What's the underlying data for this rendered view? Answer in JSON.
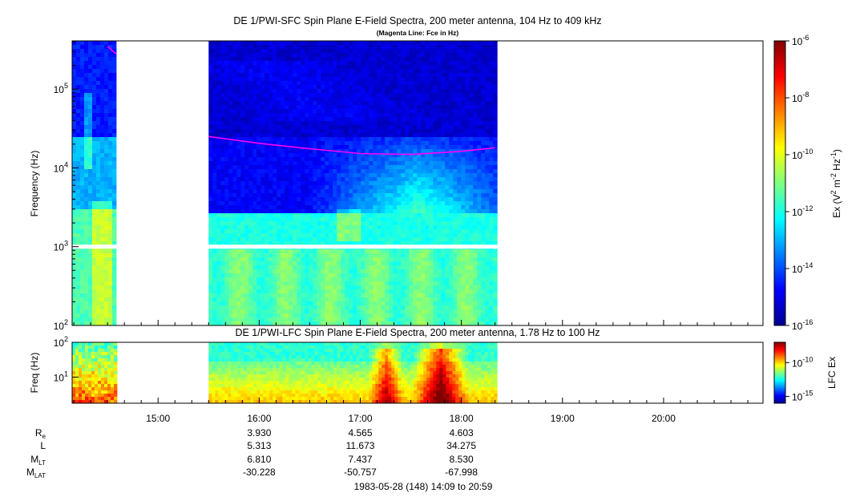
{
  "chart_data": [
    {
      "type": "heatmap",
      "title": "DE 1/PWI-SFC  Spin Plane E-Field Spectra, 200 meter antenna, 104 Hz to 409 kHz",
      "subtitle": "(Magenta Line: Fce in Hz)",
      "ylabel": "Frequency (Hz)",
      "yscale": "log",
      "ylim": [
        100,
        409000
      ],
      "yticks": [
        {
          "value": 100,
          "base": "10",
          "exp": "2"
        },
        {
          "value": 1000,
          "base": "10",
          "exp": "3"
        },
        {
          "value": 10000,
          "base": "10",
          "exp": "4"
        },
        {
          "value": 100000,
          "base": "10",
          "exp": "5"
        }
      ],
      "colorbar": {
        "label_parts": [
          "Ex (V",
          "2",
          " m",
          "-2",
          " Hz",
          "-1",
          ")"
        ],
        "scale": "log",
        "range": [
          1e-16,
          1e-06
        ],
        "ticks": [
          {
            "value": 1e-06,
            "base": "10",
            "exp": "-6"
          },
          {
            "value": 1e-08,
            "base": "10",
            "exp": "-8"
          },
          {
            "value": 1e-10,
            "base": "10",
            "exp": "-10"
          },
          {
            "value": 1e-12,
            "base": "10",
            "exp": "-12"
          },
          {
            "value": 1e-14,
            "base": "10",
            "exp": "-14"
          },
          {
            "value": 1e-16,
            "base": "10",
            "exp": "-16"
          }
        ]
      },
      "data_intervals": [
        [
          "14:09",
          "14:35"
        ],
        [
          "15:30",
          "18:20"
        ]
      ],
      "magenta_line_fce": {
        "name": "Fce",
        "color": "#ff00ff",
        "segments": [
          [
            {
              "t": "14:30",
              "f": 350000
            },
            {
              "t": "14:35",
              "f": 280000
            }
          ],
          [
            {
              "t": "15:30",
              "f": 25000
            },
            {
              "t": "16:00",
              "f": 20500
            },
            {
              "t": "16:30",
              "f": 17500
            },
            {
              "t": "17:00",
              "f": 15200
            },
            {
              "t": "17:30",
              "f": 14800
            },
            {
              "t": "18:00",
              "f": 16200
            },
            {
              "t": "18:20",
              "f": 18000
            }
          ]
        ]
      }
    },
    {
      "type": "heatmap",
      "title": "DE 1/PWI-LFC  Spin Plane E-Field Spectra, 200 meter antenna, 1.78 Hz to 100 Hz",
      "ylabel": "Freq (Hz)",
      "yscale": "log",
      "ylim": [
        1.78,
        100
      ],
      "yticks": [
        {
          "value": 10,
          "base": "10",
          "exp": "1"
        },
        {
          "value": 100,
          "base": "10",
          "exp": "2"
        }
      ],
      "colorbar": {
        "label": "LFC Ex",
        "scale": "log",
        "range": [
          1e-16,
          1e-07
        ],
        "ticks": [
          {
            "value": 1e-10,
            "base": "10",
            "exp": "-10"
          },
          {
            "value": 1e-15,
            "base": "10",
            "exp": "-15"
          }
        ]
      },
      "data_intervals": [
        [
          "14:09",
          "14:35"
        ],
        [
          "15:30",
          "18:20"
        ]
      ],
      "xaxis": {
        "start": "14:09",
        "end": "20:59",
        "tick_labels": [
          "15:00",
          "16:00",
          "17:00",
          "18:00",
          "19:00",
          "20:00"
        ]
      }
    }
  ],
  "ephemeris": {
    "labels": [
      {
        "main": "R",
        "sub": "e"
      },
      {
        "main": "L",
        "sub": ""
      },
      {
        "main": "M",
        "sub": "LT"
      },
      {
        "main": "M",
        "sub": "LAT"
      }
    ],
    "times": [
      "16:00",
      "17:00",
      "18:00"
    ],
    "rows": [
      [
        "3.930",
        "4.565",
        "4.603"
      ],
      [
        "5.313",
        "11.673",
        "34.275"
      ],
      [
        "6.810",
        "7.437",
        "8.530"
      ],
      [
        "-30.228",
        "-50.757",
        "-67.998"
      ]
    ]
  },
  "footer": "1983-05-28 (148) 14:09 to 20:59"
}
